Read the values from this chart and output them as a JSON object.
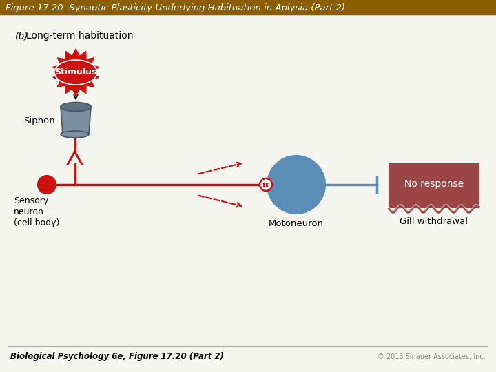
{
  "title": "Figure 17.20  Synaptic Plasticity Underlying Habituation in Aplysia (Part 2)",
  "title_bg": "#8B5E00",
  "title_color": "#FFFFFF",
  "bg_color": "#F5F5F0",
  "subtitle_b": "(b)",
  "subtitle_text": "Long-term habituation",
  "footer_left": "Biological Psychology 6e, Figure 17.20 (Part 2)",
  "footer_right": "© 2013 Sinauer Associates, Inc.",
  "stimulus_text": "Stimulus",
  "siphon_label": "Siphon",
  "sensory_label": "Sensory\nneuron\n(cell body)",
  "motoneuron_label": "Motoneuron",
  "gill_label": "Gill withdrawal",
  "no_response_label": "No response",
  "red_color": "#CC1111",
  "blue_color": "#5B8DB8",
  "gill_box_color": "#9B4545",
  "siphon_body_color": "#7A8FA0",
  "siphon_top_color": "#5C7080",
  "title_bar_height": 22
}
